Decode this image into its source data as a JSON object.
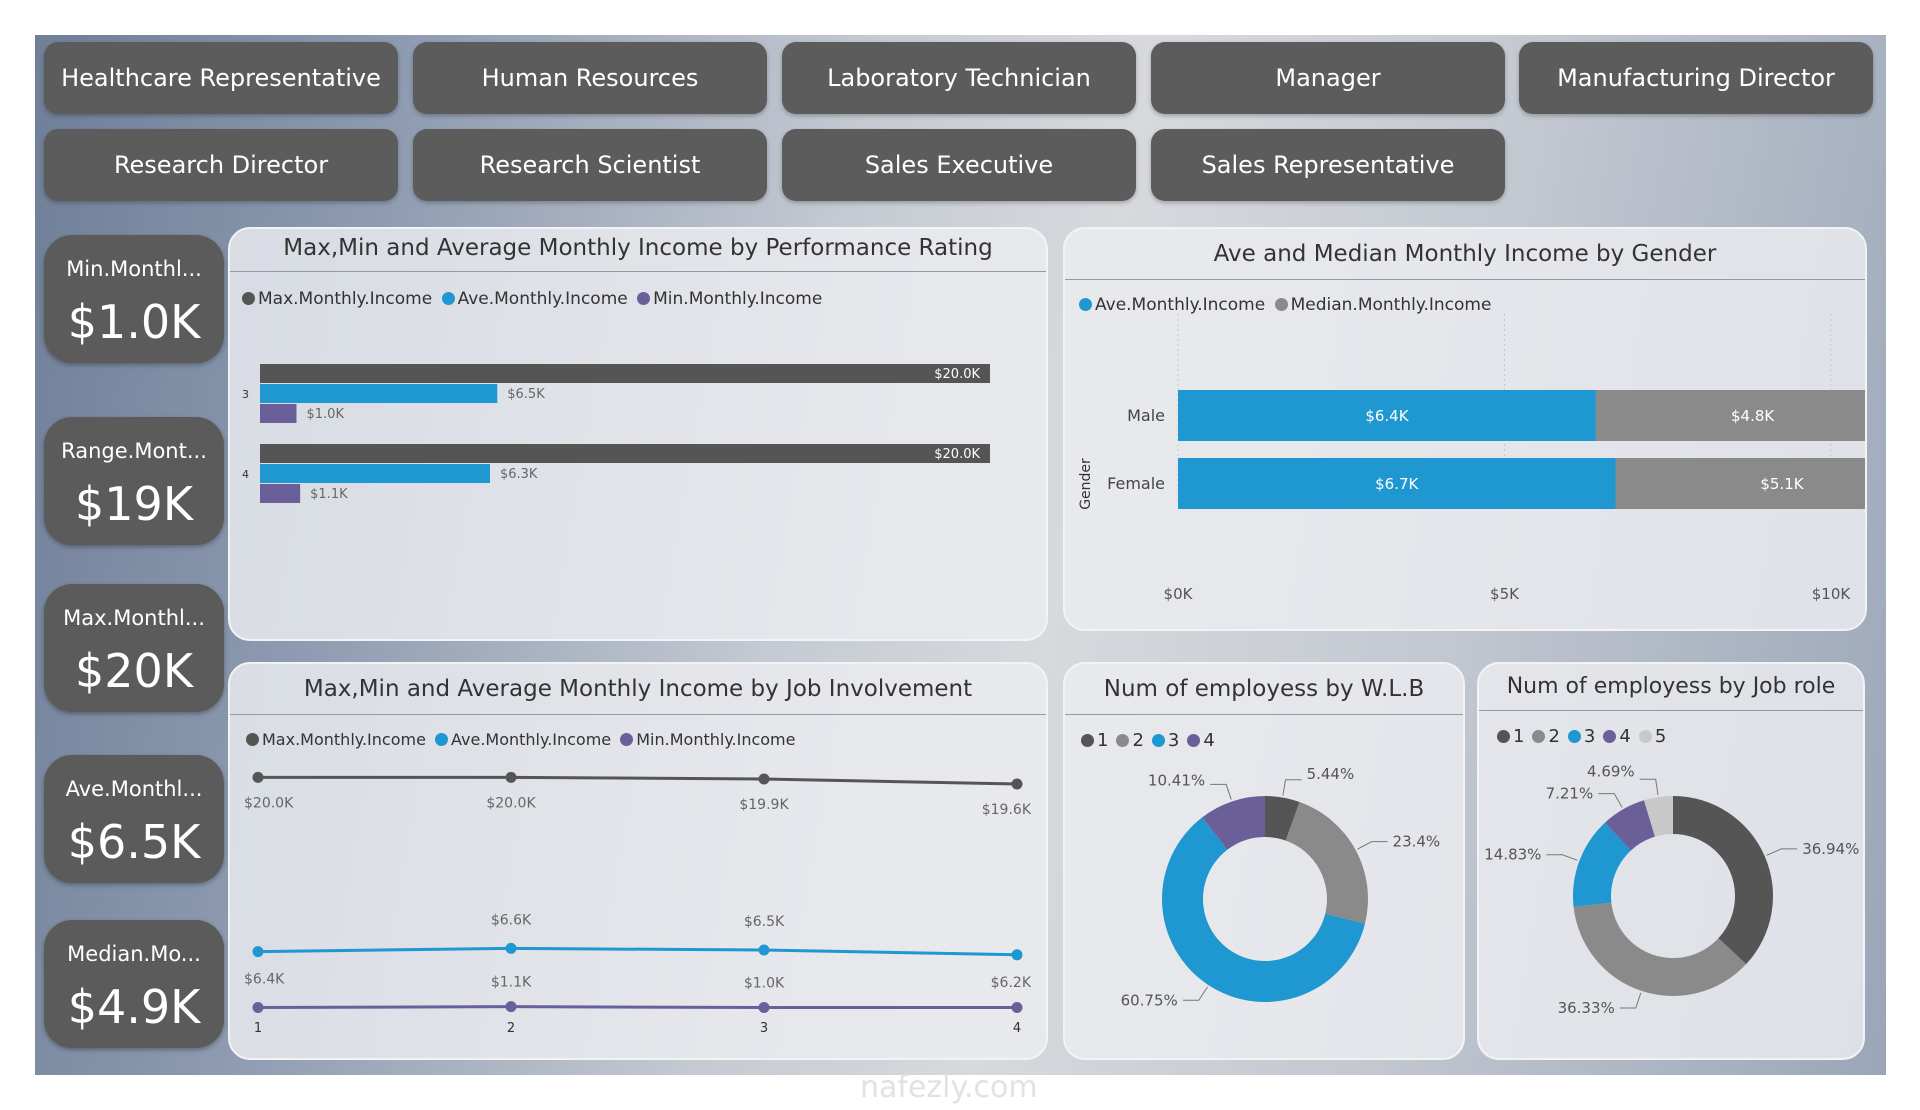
{
  "slicers": [
    "Healthcare Representative",
    "Human Resources",
    "Laboratory Technician",
    "Manager",
    "Manufacturing Director",
    "Research Director",
    "Research Scientist",
    "Sales Executive",
    "Sales Representative"
  ],
  "cards": [
    {
      "label": "Min.Monthl...",
      "value": "$1.0K"
    },
    {
      "label": "Range.Mont...",
      "value": "$19K"
    },
    {
      "label": "Max.Monthl...",
      "value": "$20K"
    },
    {
      "label": "Ave.Monthl...",
      "value": "$6.5K"
    },
    {
      "label": "Median.Mo...",
      "value": "$4.9K"
    }
  ],
  "colors": {
    "max": "#555555",
    "ave": "#1f97d0",
    "min": "#6b5f9a",
    "median": "#8a8a8a",
    "cat5": "#c8c8c8"
  },
  "perf_chart": {
    "title": "Max,Min and Average Monthly Income by Performance Rating",
    "legend": [
      "Max.Monthly.Income",
      "Ave.Monthly.Income",
      "Min.Monthly.Income"
    ]
  },
  "gender_chart": {
    "title": "Ave and Median Monthly Income by Gender",
    "legend": [
      "Ave.Monthly.Income",
      "Median.Monthly.Income"
    ],
    "ylabel": "Gender"
  },
  "job_chart": {
    "title": "Max,Min and Average Monthly Income by Job Involvement",
    "legend": [
      "Max.Monthly.Income",
      "Ave.Monthly.Income",
      "Min.Monthly.Income"
    ]
  },
  "wlb_chart": {
    "title": "Num of employess by W.L.B",
    "legend": [
      "1",
      "2",
      "3",
      "4"
    ]
  },
  "role_chart": {
    "title": "Num of employess by Job role",
    "legend": [
      "1",
      "2",
      "3",
      "4",
      "5"
    ]
  },
  "watermark": "nafezly.com",
  "chart_data": [
    {
      "type": "bar",
      "orientation": "horizontal",
      "title": "Max,Min and Average Monthly Income by Performance Rating",
      "categories": [
        "3",
        "4"
      ],
      "series": [
        {
          "name": "Max.Monthly.Income",
          "values": [
            20000,
            20000
          ],
          "labels": [
            "$20.0K",
            "$20.0K"
          ]
        },
        {
          "name": "Ave.Monthly.Income",
          "values": [
            6500,
            6300
          ],
          "labels": [
            "$6.5K",
            "$6.3K"
          ]
        },
        {
          "name": "Min.Monthly.Income",
          "values": [
            1000,
            1100
          ],
          "labels": [
            "$1.0K",
            "$1.1K"
          ]
        }
      ],
      "xlim": [
        0,
        20000
      ]
    },
    {
      "type": "bar",
      "orientation": "horizontal",
      "stacked": true,
      "title": "Ave and Median Monthly Income by Gender",
      "ylabel": "Gender",
      "categories": [
        "Male",
        "Female"
      ],
      "series": [
        {
          "name": "Ave.Monthly.Income",
          "values": [
            6400,
            6700
          ],
          "labels": [
            "$6.4K",
            "$6.7K"
          ]
        },
        {
          "name": "Median.Monthly.Income",
          "values": [
            4800,
            5100
          ],
          "labels": [
            "$4.8K",
            "$5.1K"
          ]
        }
      ],
      "xlim": [
        0,
        10000
      ],
      "xticks": [
        0,
        5000,
        10000
      ],
      "xtick_labels": [
        "$0K",
        "$5K",
        "$10K"
      ]
    },
    {
      "type": "line",
      "title": "Max,Min and Average Monthly Income by Job Involvement",
      "categories": [
        "1",
        "2",
        "3",
        "4"
      ],
      "series": [
        {
          "name": "Max.Monthly.Income",
          "values": [
            20000,
            20000,
            19900,
            19600
          ],
          "labels": [
            "$20.0K",
            "$20.0K",
            "$19.9K",
            "$19.6K"
          ]
        },
        {
          "name": "Ave.Monthly.Income",
          "values": [
            6400,
            6600,
            6500,
            6200
          ],
          "labels": [
            "$6.4K",
            "$6.6K",
            "$6.5K",
            "$6.2K"
          ]
        },
        {
          "name": "Min.Monthly.Income",
          "values": [
            1000,
            1100,
            1000,
            1000
          ],
          "labels": [
            "",
            "$1.1K",
            "$1.0K",
            ""
          ]
        }
      ]
    },
    {
      "type": "pie",
      "donut": true,
      "title": "Num of employess by W.L.B",
      "categories": [
        "1",
        "2",
        "3",
        "4"
      ],
      "values": [
        5.44,
        23.4,
        60.75,
        10.41
      ],
      "labels": [
        "5.44%",
        "23.4%",
        "60.75%",
        "10.41%"
      ]
    },
    {
      "type": "pie",
      "donut": true,
      "title": "Num of employess by Job role",
      "categories": [
        "1",
        "2",
        "3",
        "4",
        "5"
      ],
      "values": [
        36.94,
        36.33,
        14.83,
        7.21,
        4.69
      ],
      "labels": [
        "36.94%",
        "36.33%",
        "14.83%",
        "7.21%",
        "4.69%"
      ]
    }
  ]
}
